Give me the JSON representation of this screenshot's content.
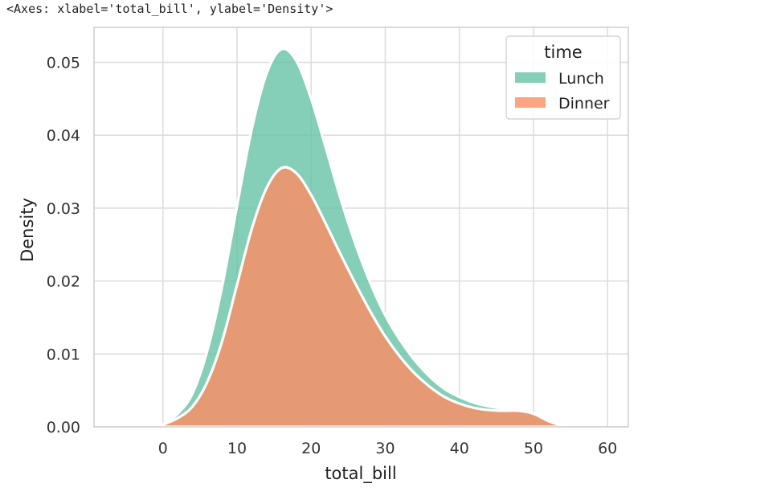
{
  "output_text": "<Axes: xlabel='total_bill', ylabel='Density'>",
  "chart_data": {
    "type": "area",
    "stacked": true,
    "xlabel": "total_bill",
    "ylabel": "Density",
    "xlim": [
      -9.3,
      62.8
    ],
    "ylim": [
      0,
      0.0548
    ],
    "xticks": [
      "0",
      "10",
      "20",
      "30",
      "40",
      "50",
      "60"
    ],
    "yticks": [
      "0.00",
      "0.01",
      "0.02",
      "0.03",
      "0.04",
      "0.05"
    ],
    "grid": true,
    "legend": {
      "title": "time",
      "placement": "top-right"
    },
    "x": [
      0,
      2,
      4,
      6,
      8,
      10,
      12,
      14,
      16,
      18,
      20,
      22,
      24,
      26,
      28,
      30,
      32,
      34,
      36,
      38,
      40,
      42,
      44,
      46,
      48,
      50,
      52,
      54
    ],
    "series": [
      {
        "name": "Lunch",
        "color": "#66c2a5",
        "values": [
          0,
          0.0006,
          0.0018,
          0.0043,
          0.0075,
          0.0108,
          0.0137,
          0.0157,
          0.0163,
          0.0154,
          0.0132,
          0.0104,
          0.0076,
          0.0054,
          0.0039,
          0.0029,
          0.0023,
          0.0018,
          0.0014,
          0.0011,
          0.0009,
          0.0007,
          0.0005,
          0.0003,
          0.0001,
          0,
          0,
          0
        ]
      },
      {
        "name": "Dinner",
        "color": "#fc8d62",
        "values": [
          0.0003,
          0.0012,
          0.0028,
          0.0062,
          0.0118,
          0.0195,
          0.0272,
          0.0328,
          0.0355,
          0.0348,
          0.0318,
          0.0278,
          0.0236,
          0.0196,
          0.0158,
          0.0124,
          0.0096,
          0.0073,
          0.0055,
          0.0041,
          0.0032,
          0.0026,
          0.0023,
          0.0022,
          0.0022,
          0.0018,
          0.0008,
          0.0001
        ]
      }
    ]
  }
}
